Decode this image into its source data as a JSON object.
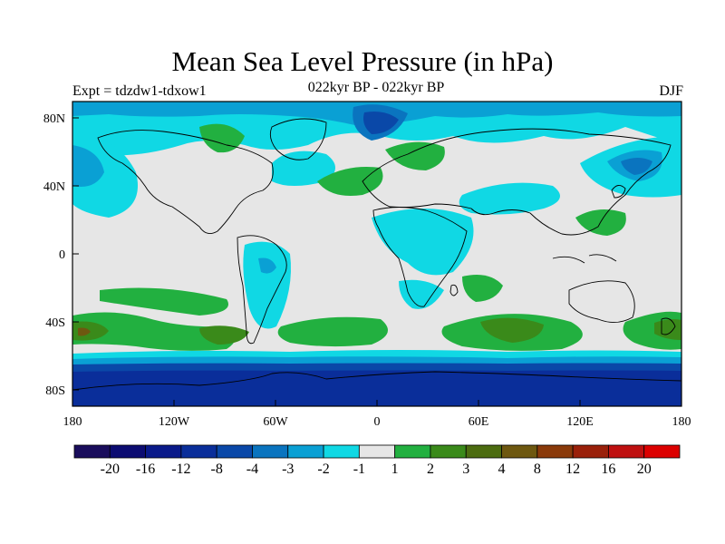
{
  "title": "Mean Sea Level Pressure (in hPa)",
  "subtitle": "022kyr BP - 022kyr BP",
  "experiment": "Expt = tdzdw1-tdxow1",
  "season": "DJF",
  "lat_ticks": [
    "80N",
    "40N",
    "0",
    "40S",
    "80S"
  ],
  "lon_ticks": [
    "180",
    "120W",
    "60W",
    "0",
    "60E",
    "120E",
    "180"
  ],
  "colorbar": {
    "labels": [
      "-20",
      "-16",
      "-12",
      "-8",
      "-4",
      "-3",
      "-2",
      "-1",
      "1",
      "2",
      "3",
      "4",
      "8",
      "12",
      "16",
      "20"
    ],
    "colors": [
      "#1a0d5c",
      "#0c0c72",
      "#0a1a8a",
      "#0a2e9a",
      "#0a48a8",
      "#0a74bf",
      "#0aa0d4",
      "#10d8e4",
      "#e6e6e6",
      "#22b040",
      "#3a8a1a",
      "#4c6c10",
      "#6e5810",
      "#8a3a0a",
      "#9a200a",
      "#bf1010",
      "#dc0000"
    ]
  },
  "colors": {
    "ocean_neutral": "#e6e6e6",
    "coastline": "#000000"
  }
}
